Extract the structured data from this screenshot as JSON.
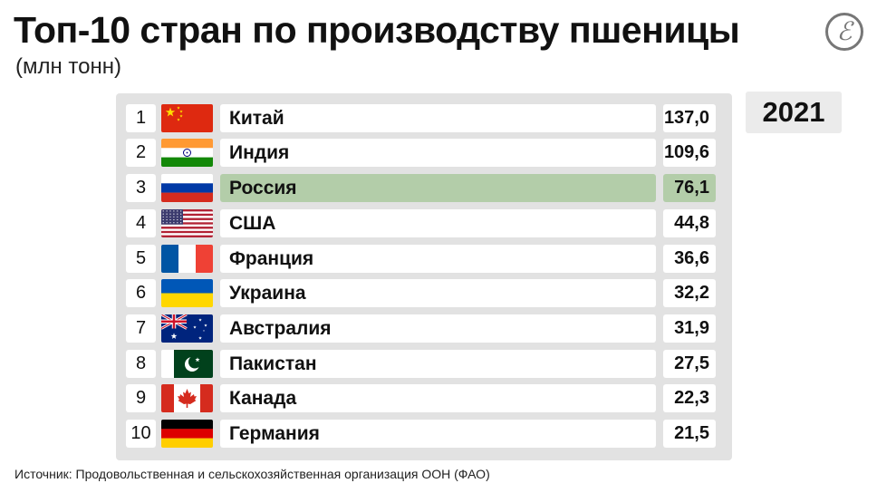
{
  "title": "Топ-10 стран по производству пшеницы",
  "subtitle": "(млн тонн)",
  "year": "2021",
  "source": "Источник: Продовольственная и сельскохозяйственная организация ООН (ФАО)",
  "logo_icon": "publisher-logo-icon",
  "highlight_color": "#b3cda9",
  "chart_data": {
    "type": "table",
    "title": "Топ-10 стран по производству пшеницы",
    "unit": "(млн тонн)",
    "year": "2021",
    "columns": [
      "rank",
      "flag",
      "country",
      "value"
    ],
    "rows": [
      {
        "rank": "1",
        "country": "Китай",
        "value": "137,0",
        "flag": "china"
      },
      {
        "rank": "2",
        "country": "Индия",
        "value": "109,6",
        "flag": "india"
      },
      {
        "rank": "3",
        "country": "Россия",
        "value": "76,1",
        "flag": "russia",
        "highlight": true
      },
      {
        "rank": "4",
        "country": "США",
        "value": "44,8",
        "flag": "usa"
      },
      {
        "rank": "5",
        "country": "Франция",
        "value": "36,6",
        "flag": "france"
      },
      {
        "rank": "6",
        "country": "Украина",
        "value": "32,2",
        "flag": "ukraine"
      },
      {
        "rank": "7",
        "country": "Австралия",
        "value": "31,9",
        "flag": "australia"
      },
      {
        "rank": "8",
        "country": "Пакистан",
        "value": "27,5",
        "flag": "pakistan"
      },
      {
        "rank": "9",
        "country": "Канада",
        "value": "22,3",
        "flag": "canada"
      },
      {
        "rank": "10",
        "country": "Германия",
        "value": "21,5",
        "flag": "germany"
      }
    ]
  }
}
